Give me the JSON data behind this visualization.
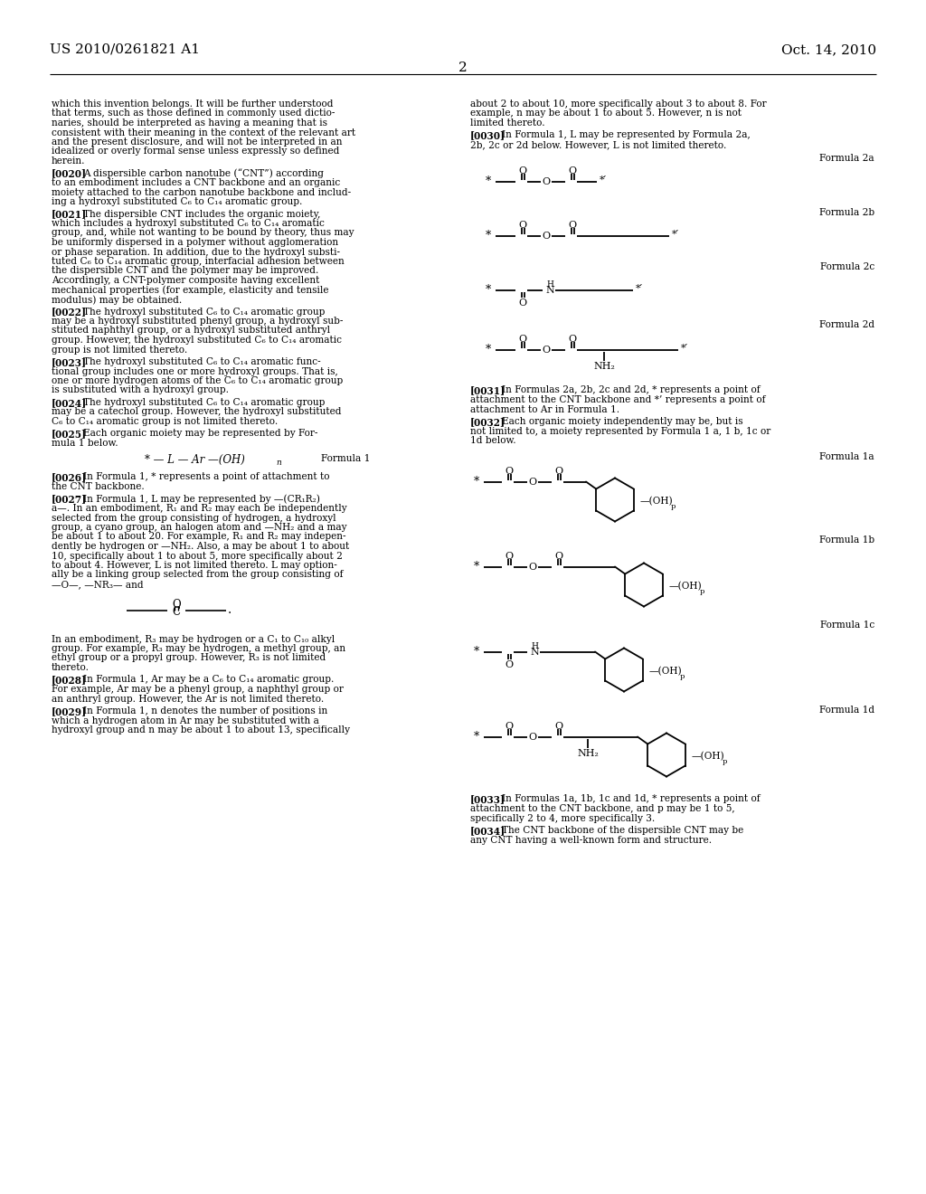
{
  "background_color": "#ffffff",
  "page_number": "2",
  "header_left": "US 2010/0261821 A1",
  "header_right": "Oct. 14, 2010",
  "figsize": [
    10.24,
    13.2
  ],
  "dpi": 100
}
